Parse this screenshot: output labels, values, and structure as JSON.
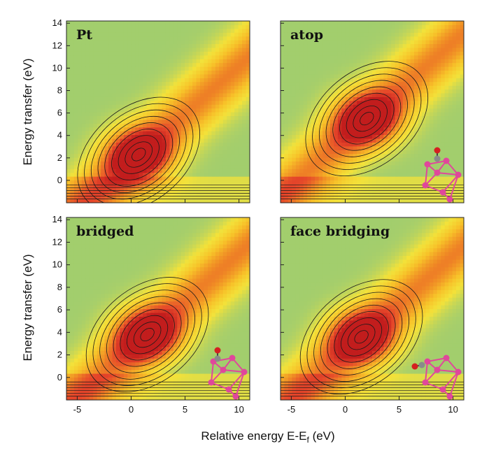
{
  "colors": {
    "background": "#ffffff",
    "contour_line": "#1a1a1a",
    "colormap": [
      "#6cc08a",
      "#a8cf6a",
      "#f3e23a",
      "#f7c229",
      "#f08d25",
      "#e5462a",
      "#c21d1d"
    ],
    "atom_pt": "#e0479b",
    "atom_c": "#8a8a8a",
    "atom_o": "#d42020"
  },
  "chart_data": {
    "type": "heatmap",
    "xlabel_main": "Relative energy E-E",
    "xlabel_sub": "f",
    "xlabel_unit": " (eV)",
    "ylabel": "Energy transfer (eV)",
    "xlim": [
      -6,
      11
    ],
    "ylim": [
      -2,
      14.2
    ],
    "x_ticks": [
      -5,
      0,
      5,
      10
    ],
    "y_ticks": [
      0,
      2,
      4,
      6,
      8,
      10,
      12,
      14
    ],
    "panels": [
      {
        "label": "Pt",
        "peak": {
          "x": 0.7,
          "y": 2.3
        },
        "adsorbate": "none"
      },
      {
        "label": "atop",
        "peak": {
          "x": 2.0,
          "y": 5.5
        },
        "adsorbate": "CO atop"
      },
      {
        "label": "bridged",
        "peak": {
          "x": 1.5,
          "y": 3.8
        },
        "adsorbate": "CO bridged"
      },
      {
        "label": "face bridging",
        "peak": {
          "x": 1.5,
          "y": 3.6
        },
        "adsorbate": "CO face bridging"
      }
    ]
  }
}
